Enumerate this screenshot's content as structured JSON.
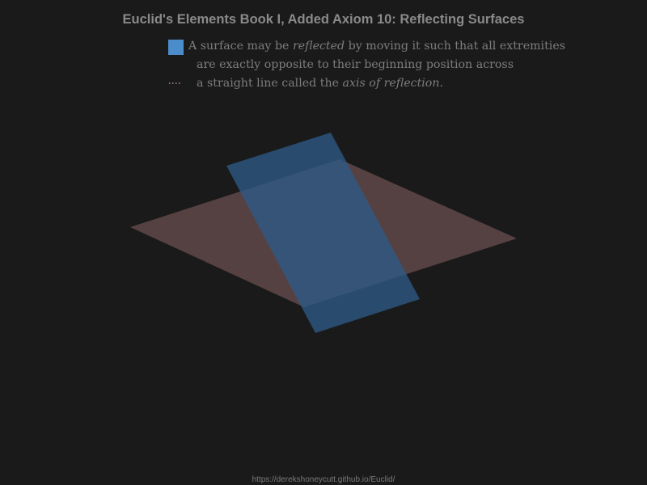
{
  "title": "Euclid's Elements Book I, Added Axiom 10: Reflecting Surfaces",
  "legend": {
    "surface_text_1": "A surface may be ",
    "surface_text_reflected": "reflected",
    "surface_text_2": " by moving it such that all extremities",
    "line2": "are exactly opposite to their beginning position across",
    "axis_text_1": "a straight line called the ",
    "axis_text_italic": "axis of reflection",
    "axis_text_2": "."
  },
  "footer": {
    "url": "https://derekshoneycutt.github.io/Euclid/"
  },
  "colors": {
    "background": "#1a1a1a",
    "surface": "#4b8ccb",
    "plane": "#5a4345",
    "axis_dots": "#c79a9a",
    "text": "#7d7d7d"
  }
}
